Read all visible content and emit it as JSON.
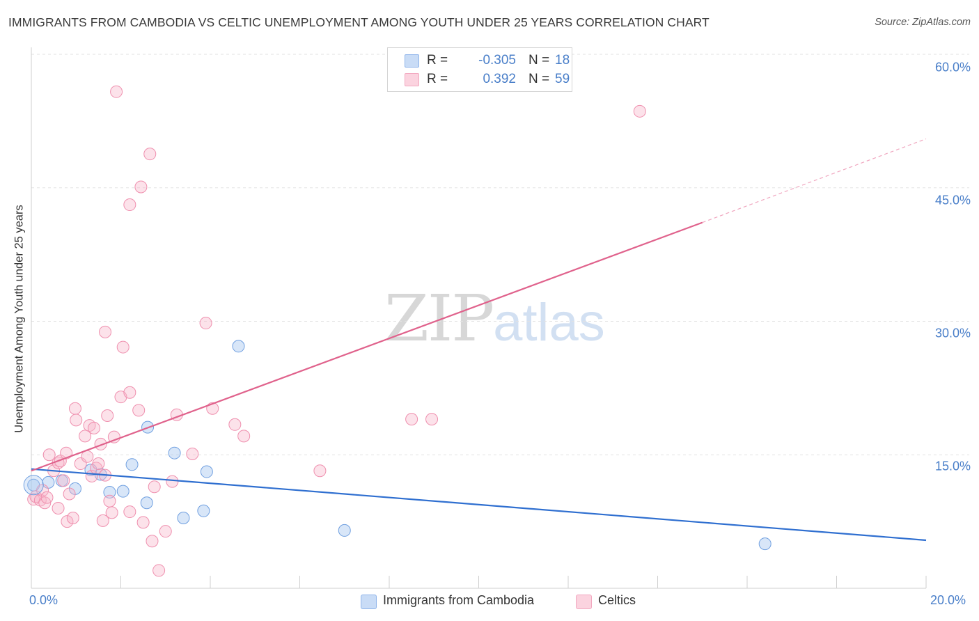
{
  "title": "IMMIGRANTS FROM CAMBODIA VS CELTIC UNEMPLOYMENT AMONG YOUTH UNDER 25 YEARS CORRELATION CHART",
  "source": "Source: ZipAtlas.com",
  "watermark": {
    "zip": "ZIP",
    "atlas": "atlas"
  },
  "legend": {
    "rows": [
      {
        "r_label": "R =",
        "r_value": "-0.305",
        "n_label": "N =",
        "n_value": "18",
        "color": "#a9c8f0"
      },
      {
        "r_label": "R =",
        "r_value": "0.392",
        "n_label": "N =",
        "n_value": "59",
        "color": "#f7b6cb"
      }
    ]
  },
  "bottom_legend": {
    "cambodia": "Immigrants from Cambodia",
    "celtics": "Celtics"
  },
  "colors": {
    "blue": "#6f9fe0",
    "blue_line": "#2f6fd0",
    "pink": "#ef8fae",
    "pink_line": "#e0628c",
    "tick": "#4a7fc9"
  },
  "chart_data": {
    "type": "scatter",
    "title": "IMMIGRANTS FROM CAMBODIA VS CELTIC UNEMPLOYMENT AMONG YOUTH UNDER 25 YEARS CORRELATION CHART",
    "xlabel": "",
    "ylabel": "Unemployment Among Youth under 25 years",
    "xlim": [
      0,
      20
    ],
    "ylim": [
      0,
      60
    ],
    "x_ticks": [
      "0.0%",
      "20.0%"
    ],
    "y_ticks": [
      {
        "value": 15,
        "label": "15.0%"
      },
      {
        "value": 30,
        "label": "30.0%"
      },
      {
        "value": 45,
        "label": "45.0%"
      },
      {
        "value": 60,
        "label": "60.0%"
      }
    ],
    "grid": true,
    "legend_position": "top-center",
    "series": [
      {
        "name": "Immigrants from Cambodia",
        "color": "#6f9fe0",
        "points": [
          [
            0.05,
            11.6
          ],
          [
            0.38,
            11.9
          ],
          [
            0.68,
            12.1
          ],
          [
            0.98,
            11.2
          ],
          [
            1.33,
            13.3
          ],
          [
            1.55,
            12.8
          ],
          [
            1.75,
            10.8
          ],
          [
            2.05,
            10.9
          ],
          [
            2.25,
            13.9
          ],
          [
            2.58,
            9.6
          ],
          [
            3.2,
            15.2
          ],
          [
            3.4,
            7.9
          ],
          [
            3.85,
            8.7
          ],
          [
            3.92,
            13.1
          ],
          [
            4.63,
            27.2
          ],
          [
            2.6,
            18.1
          ],
          [
            7.0,
            6.5
          ],
          [
            16.4,
            5.0
          ]
        ],
        "trend": {
          "x": [
            0,
            20
          ],
          "y": [
            13.4,
            5.4
          ],
          "style": "solid"
        }
      },
      {
        "name": "Celtics",
        "color": "#ef8fae",
        "points": [
          [
            0.05,
            10.0
          ],
          [
            0.1,
            10.3
          ],
          [
            0.2,
            9.9
          ],
          [
            0.25,
            11.0
          ],
          [
            0.3,
            9.6
          ],
          [
            0.35,
            10.2
          ],
          [
            0.4,
            15.0
          ],
          [
            0.5,
            13.2
          ],
          [
            0.6,
            14.1
          ],
          [
            0.65,
            14.3
          ],
          [
            0.72,
            12.1
          ],
          [
            0.78,
            15.2
          ],
          [
            0.8,
            7.5
          ],
          [
            0.85,
            10.6
          ],
          [
            0.93,
            7.9
          ],
          [
            0.98,
            20.2
          ],
          [
            1.0,
            18.9
          ],
          [
            1.1,
            14.0
          ],
          [
            1.2,
            17.1
          ],
          [
            1.25,
            14.8
          ],
          [
            1.3,
            18.3
          ],
          [
            1.35,
            12.6
          ],
          [
            1.4,
            18.0
          ],
          [
            1.45,
            13.5
          ],
          [
            1.5,
            14.0
          ],
          [
            1.55,
            16.2
          ],
          [
            1.6,
            7.6
          ],
          [
            1.65,
            12.7
          ],
          [
            1.7,
            19.4
          ],
          [
            1.75,
            9.8
          ],
          [
            1.8,
            8.5
          ],
          [
            1.85,
            17.0
          ],
          [
            1.65,
            28.8
          ],
          [
            2.05,
            27.1
          ],
          [
            2.0,
            21.5
          ],
          [
            2.2,
            8.6
          ],
          [
            2.4,
            20.0
          ],
          [
            2.5,
            7.4
          ],
          [
            2.7,
            5.3
          ],
          [
            2.75,
            11.4
          ],
          [
            2.85,
            2.0
          ],
          [
            3.0,
            6.4
          ],
          [
            3.15,
            12.0
          ],
          [
            3.25,
            19.5
          ],
          [
            3.6,
            15.1
          ],
          [
            3.9,
            29.8
          ],
          [
            4.05,
            20.2
          ],
          [
            4.55,
            18.4
          ],
          [
            4.75,
            17.1
          ],
          [
            6.45,
            13.2
          ],
          [
            8.5,
            19.0
          ],
          [
            8.95,
            19.0
          ],
          [
            1.9,
            55.8
          ],
          [
            2.65,
            48.8
          ],
          [
            2.45,
            45.1
          ],
          [
            2.2,
            43.1
          ],
          [
            13.6,
            53.6
          ],
          [
            0.6,
            9.0
          ],
          [
            2.2,
            22.0
          ]
        ],
        "trend": {
          "x": [
            0,
            15.0
          ],
          "y": [
            13.2,
            41.1
          ],
          "style": "solid",
          "extension": {
            "x": [
              15.0,
              20.0
            ],
            "y": [
              41.1,
              50.5
            ],
            "style": "dashed"
          }
        }
      }
    ]
  }
}
